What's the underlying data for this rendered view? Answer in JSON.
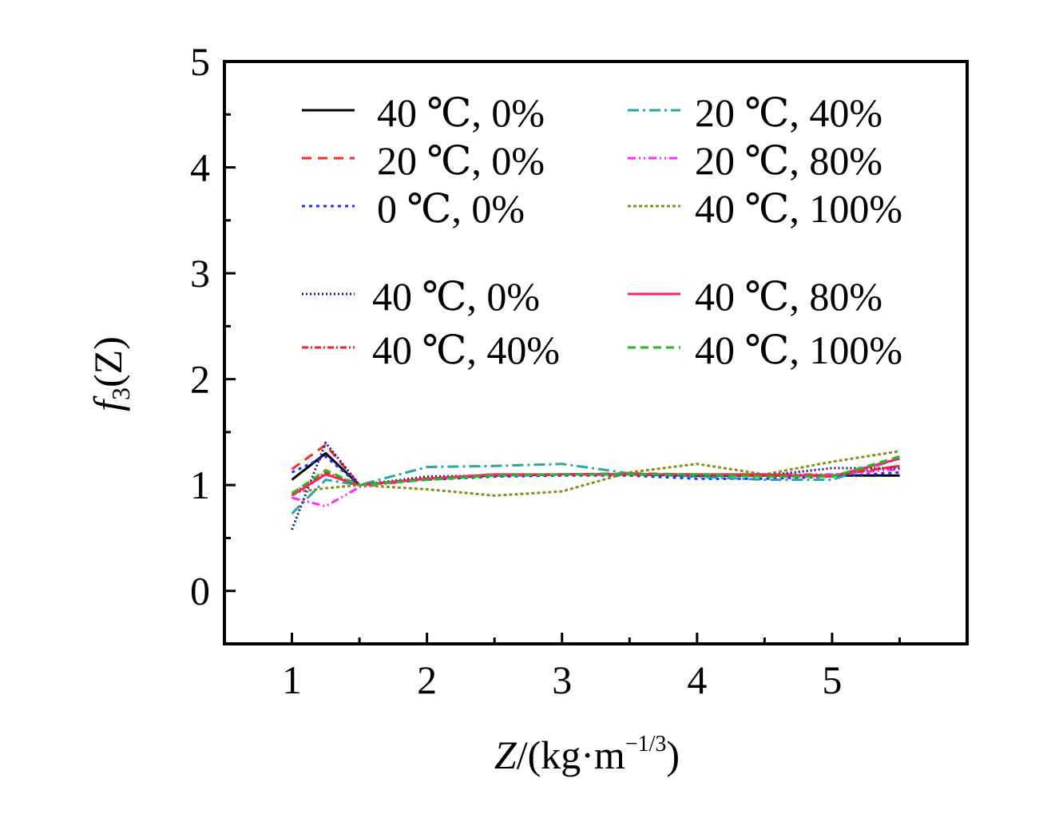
{
  "chart_data": {
    "type": "line",
    "title": "",
    "xlabel": {
      "main": "Z",
      "suffix": "/(kg·m",
      "sup": "−1/3",
      "close": ")"
    },
    "ylabel": {
      "main": "f",
      "sub": "3",
      "rest": "(Z)"
    },
    "xlim": [
      0.5,
      6.0
    ],
    "ylim": [
      -0.5,
      5.0
    ],
    "xticks": [
      1,
      2,
      3,
      4,
      5
    ],
    "yticks": [
      0,
      1,
      2,
      3,
      4,
      5
    ],
    "xtick_labels": [
      "1",
      "2",
      "3",
      "4",
      "5"
    ],
    "ytick_labels": [
      "0",
      "1",
      "2",
      "3",
      "4",
      "5"
    ],
    "grid": false,
    "legend_position": "top",
    "series": [
      {
        "name": "40 ℃, 0%",
        "color": "#000000",
        "dash": "none",
        "x": [
          1.0,
          1.25,
          1.5,
          2.0,
          2.5,
          3.0,
          3.5,
          4.0,
          4.5,
          5.0,
          5.5
        ],
        "y": [
          1.05,
          1.3,
          1.0,
          1.06,
          1.09,
          1.1,
          1.1,
          1.09,
          1.09,
          1.09,
          1.09
        ]
      },
      {
        "name": "20 ℃, 0%",
        "color": "#ff2a2a",
        "dash": "12,8",
        "x": [
          1.0,
          1.25,
          1.5,
          2.0,
          2.5,
          3.0,
          3.5,
          4.0,
          4.5,
          5.0,
          5.5
        ],
        "y": [
          1.15,
          1.38,
          1.0,
          1.06,
          1.09,
          1.1,
          1.11,
          1.1,
          1.09,
          1.09,
          1.18
        ]
      },
      {
        "name": "0 ℃, 0%",
        "color": "#1f2bff",
        "dash": "4,5",
        "x": [
          1.0,
          1.25,
          1.5,
          2.0,
          2.5,
          3.0,
          3.5,
          4.0,
          4.5,
          5.0,
          5.5
        ],
        "y": [
          1.12,
          1.27,
          1.0,
          1.05,
          1.08,
          1.09,
          1.09,
          1.06,
          1.06,
          1.08,
          1.12
        ]
      },
      {
        "name": "20 ℃, 40%",
        "color": "#2aa6a6",
        "dash": "14,5,3,5",
        "x": [
          1.0,
          1.25,
          1.5,
          2.0,
          2.5,
          3.0,
          3.5,
          4.0,
          4.5,
          5.0,
          5.5
        ],
        "y": [
          0.73,
          1.05,
          1.0,
          1.17,
          1.18,
          1.2,
          1.11,
          1.08,
          1.05,
          1.05,
          1.25
        ]
      },
      {
        "name": "20 ℃, 80%",
        "color": "#ff2aff",
        "dash": "10,4,2,4,2,4",
        "x": [
          1.0,
          1.25,
          1.5,
          2.0,
          2.5,
          3.0,
          3.5,
          4.0,
          4.5,
          5.0,
          5.5
        ],
        "y": [
          0.88,
          0.8,
          0.98,
          1.06,
          1.09,
          1.1,
          1.1,
          1.1,
          1.1,
          1.1,
          1.15
        ]
      },
      {
        "name": "40 ℃, 100%",
        "color": "#8c8c1a",
        "dash": "4,3",
        "x": [
          1.0,
          1.25,
          1.5,
          2.0,
          2.5,
          3.0,
          3.5,
          4.0,
          4.5,
          5.0,
          5.5
        ],
        "y": [
          0.93,
          0.97,
          1.0,
          0.96,
          0.9,
          0.94,
          1.12,
          1.2,
          1.1,
          1.22,
          1.32
        ]
      },
      {
        "name": "40 ℃, 0%",
        "color": "#1f1f8c",
        "dash": "2,3",
        "x": [
          1.0,
          1.25,
          1.5,
          2.0,
          2.5,
          3.0,
          3.5,
          4.0,
          4.5,
          5.0,
          5.5
        ],
        "y": [
          0.58,
          1.4,
          1.0,
          1.08,
          1.09,
          1.1,
          1.1,
          1.09,
          1.09,
          1.16,
          1.16
        ]
      },
      {
        "name": "40 ℃, 80%",
        "color": "#ff1f7a",
        "dash": "none",
        "x": [
          1.0,
          1.25,
          1.5,
          2.0,
          2.5,
          3.0,
          3.5,
          4.0,
          4.5,
          5.0,
          5.5
        ],
        "y": [
          0.9,
          1.1,
          1.0,
          1.06,
          1.1,
          1.1,
          1.1,
          1.1,
          1.1,
          1.08,
          1.25
        ]
      },
      {
        "name": "40 ℃, 40%",
        "color": "#ff2020",
        "dash": "8,3,2,3",
        "x": [
          1.0,
          1.25,
          1.5,
          2.0,
          2.5,
          3.0,
          3.5,
          4.0,
          4.5,
          5.0,
          5.5
        ],
        "y": [
          0.92,
          1.12,
          1.0,
          1.06,
          1.09,
          1.1,
          1.1,
          1.1,
          1.09,
          1.09,
          1.18
        ]
      },
      {
        "name": "40 ℃, 100%",
        "color": "#1fbf1f",
        "dash": "10,6",
        "x": [
          1.0,
          1.25,
          1.5,
          2.0,
          2.5,
          3.0,
          3.5,
          4.0,
          4.5,
          5.0,
          5.5
        ],
        "y": [
          0.92,
          1.14,
          1.0,
          1.05,
          1.09,
          1.1,
          1.1,
          1.1,
          1.08,
          1.08,
          1.27
        ]
      }
    ]
  }
}
